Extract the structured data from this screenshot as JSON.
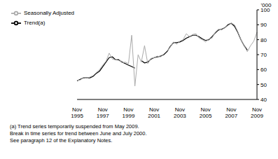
{
  "chart_data": {
    "type": "line",
    "ylabel": "'000",
    "categories": [
      "Nov 1995",
      null,
      null,
      null,
      null,
      null,
      null,
      null,
      "Nov 1997",
      null,
      null,
      null,
      null,
      null,
      null,
      null,
      "Nov 1999",
      null,
      null,
      null,
      null,
      null,
      null,
      null,
      "Nov 2001",
      null,
      null,
      null,
      null,
      null,
      null,
      null,
      "Nov 2003",
      null,
      null,
      null,
      null,
      null,
      null,
      null,
      "Nov 2005",
      null,
      null,
      null,
      null,
      null,
      null,
      null,
      "Nov 2007",
      null,
      null,
      null,
      null,
      null,
      null,
      null,
      "Nov 2009"
    ],
    "series": [
      {
        "name": "Trend(a)",
        "color": "#000000",
        "values": [
          52.5,
          53.5,
          54.5,
          54.5,
          54.5,
          55.5,
          57.5,
          59,
          62,
          65,
          68,
          68.5,
          66.5,
          66.5,
          65,
          64,
          63,
          62,
          61,
          null,
          66,
          64.5,
          65,
          67,
          68,
          68.5,
          69,
          70,
          72,
          75.5,
          78,
          78,
          78.5,
          79.5,
          81,
          82,
          83,
          83,
          82,
          80.5,
          79.5,
          80,
          82,
          84.5,
          86.5,
          87,
          88,
          90,
          91,
          89,
          85,
          80,
          76,
          73,
          null,
          null,
          null
        ]
      },
      {
        "name": "Seasonally Adjusted",
        "color": "#aaaaaa",
        "values": [
          52.8,
          53,
          54.7,
          54.2,
          55,
          56,
          58,
          60,
          63,
          65.5,
          71,
          67,
          66.5,
          67,
          64.5,
          65,
          64,
          83,
          49,
          70,
          65,
          76,
          64,
          67.5,
          68,
          69,
          68.5,
          70.5,
          72.5,
          75,
          78.5,
          77,
          79,
          80,
          84,
          82,
          83.5,
          84,
          81,
          80,
          78.5,
          80.5,
          81,
          85,
          87,
          86.5,
          88,
          89.5,
          91,
          90,
          85.5,
          80,
          76,
          72,
          76,
          79,
          85
        ]
      }
    ],
    "ylim": [
      40,
      100
    ],
    "yticks": [
      40,
      50,
      60,
      70,
      80,
      90,
      100
    ],
    "grid": false,
    "legend": "top-left",
    "notes": [
      "(a) Trend series temporarily suspended from May 2009.",
      "Break in time series for trend between June and July 2000.",
      "See paragraph 12 of the Explanatory Notes."
    ]
  }
}
